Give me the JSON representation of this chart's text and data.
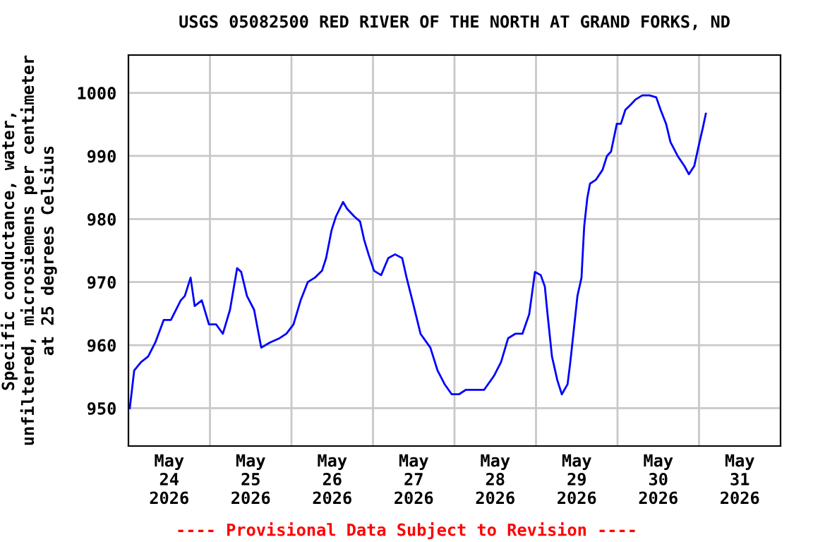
{
  "chart_data": {
    "type": "line",
    "title": "USGS 05082500 RED RIVER OF THE NORTH AT GRAND FORKS, ND",
    "ylabel": "Specific conductance, water,\nunfiltered, microsiemens per centimeter\nat 25 degrees Celsius",
    "annotations": [
      "---- Provisional Data Subject to Revision ----"
    ],
    "xlim": [
      "2026-05-24T00:00",
      "2026-06-01T00:00"
    ],
    "xticks": [
      {
        "value": "2026-05-24T12:00",
        "label": "May\n24\n2026"
      },
      {
        "value": "2026-05-25T12:00",
        "label": "May\n25\n2026"
      },
      {
        "value": "2026-05-26T12:00",
        "label": "May\n26\n2026"
      },
      {
        "value": "2026-05-27T12:00",
        "label": "May\n27\n2026"
      },
      {
        "value": "2026-05-28T12:00",
        "label": "May\n28\n2026"
      },
      {
        "value": "2026-05-29T12:00",
        "label": "May\n29\n2026"
      },
      {
        "value": "2026-05-30T12:00",
        "label": "May\n30\n2026"
      },
      {
        "value": "2026-05-31T12:00",
        "label": "May\n31\n2026"
      },
      {
        "value": "2026-05-25T00:00",
        "label": null
      },
      {
        "value": "2026-05-26T00:00",
        "label": null
      },
      {
        "value": "2026-05-27T00:00",
        "label": null
      },
      {
        "value": "2026-05-28T00:00",
        "label": null
      },
      {
        "value": "2026-05-29T00:00",
        "label": null
      },
      {
        "value": "2026-05-30T00:00",
        "label": null
      },
      {
        "value": "2026-05-31T00:00",
        "label": null
      }
    ],
    "ylim": [
      944,
      1006
    ],
    "yticks": [
      950,
      960,
      970,
      980,
      990,
      1000
    ],
    "grid": true,
    "legend": false,
    "line_style": "solid",
    "marker": "none",
    "series": [
      {
        "color": "#0000ff",
        "x": [
          "2026-05-24T00:24",
          "2026-05-24T01:42",
          "2026-05-24T03:42",
          "2026-05-24T05:48",
          "2026-05-24T07:54",
          "2026-05-24T10:24",
          "2026-05-24T12:30",
          "2026-05-24T15:24",
          "2026-05-24T16:36",
          "2026-05-24T18:18",
          "2026-05-24T19:30",
          "2026-05-24T21:36",
          "2026-05-24T23:42",
          "2026-05-25T01:48",
          "2026-05-25T03:48",
          "2026-05-25T05:54",
          "2026-05-25T08:00",
          "2026-05-25T09:12",
          "2026-05-25T10:54",
          "2026-05-25T13:00",
          "2026-05-25T15:06",
          "2026-05-25T17:36",
          "2026-05-25T20:30",
          "2026-05-25T22:30",
          "2026-05-26T00:36",
          "2026-05-26T02:42",
          "2026-05-26T04:48",
          "2026-05-26T06:54",
          "2026-05-26T09:00",
          "2026-05-26T10:12",
          "2026-05-26T11:48",
          "2026-05-26T13:06",
          "2026-05-26T15:12",
          "2026-05-26T16:24",
          "2026-05-26T18:30",
          "2026-05-26T20:12",
          "2026-05-26T21:24",
          "2026-05-26T22:42",
          "2026-05-27T00:18",
          "2026-05-27T02:24",
          "2026-05-27T04:30",
          "2026-05-27T06:30",
          "2026-05-27T08:36",
          "2026-05-27T09:54",
          "2026-05-27T12:00",
          "2026-05-27T14:00",
          "2026-05-27T16:54",
          "2026-05-27T19:00",
          "2026-05-27T21:06",
          "2026-05-27T23:12",
          "2026-05-28T01:18",
          "2026-05-28T03:18",
          "2026-05-28T06:12",
          "2026-05-28T08:42",
          "2026-05-28T11:36",
          "2026-05-28T13:42",
          "2026-05-28T15:48",
          "2026-05-28T17:54",
          "2026-05-28T20:00",
          "2026-05-28T22:00",
          "2026-05-28T23:42",
          "2026-05-29T01:24",
          "2026-05-29T02:36",
          "2026-05-29T03:24",
          "2026-05-29T04:42",
          "2026-05-29T06:18",
          "2026-05-29T07:36",
          "2026-05-29T09:18",
          "2026-05-29T10:06",
          "2026-05-29T11:18",
          "2026-05-29T12:12",
          "2026-05-29T13:24",
          "2026-05-29T13:48",
          "2026-05-29T14:12",
          "2026-05-29T15:06",
          "2026-05-29T15:54",
          "2026-05-29T17:36",
          "2026-05-29T19:36",
          "2026-05-29T20:54",
          "2026-05-29T22:06",
          "2026-05-29T23:48",
          "2026-05-30T01:00",
          "2026-05-30T02:18",
          "2026-05-30T04:00",
          "2026-05-30T05:12",
          "2026-05-30T07:18",
          "2026-05-30T09:24",
          "2026-05-30T11:24",
          "2026-05-30T12:42",
          "2026-05-30T14:18",
          "2026-05-30T15:36",
          "2026-05-30T17:42",
          "2026-05-30T19:42",
          "2026-05-30T21:00",
          "2026-05-30T22:36",
          "2026-05-30T23:54",
          "2026-05-31T01:06",
          "2026-05-31T02:00"
        ],
        "values": [
          950.0,
          956.0,
          957.3,
          958.2,
          960.4,
          964.0,
          964.0,
          967.1,
          967.8,
          970.7,
          966.2,
          967.1,
          963.3,
          963.3,
          961.8,
          965.6,
          972.2,
          971.6,
          967.8,
          965.6,
          959.6,
          960.4,
          961.1,
          961.8,
          963.3,
          967.1,
          970.0,
          970.7,
          971.8,
          973.8,
          978.2,
          980.4,
          982.7,
          981.6,
          980.4,
          979.6,
          976.7,
          974.4,
          971.8,
          971.1,
          973.8,
          974.4,
          973.8,
          970.7,
          966.2,
          961.8,
          959.6,
          956.0,
          953.8,
          952.2,
          952.2,
          952.9,
          952.9,
          952.9,
          955.1,
          957.3,
          961.1,
          961.8,
          961.8,
          964.9,
          971.6,
          971.1,
          969.3,
          964.9,
          958.2,
          954.4,
          952.2,
          953.8,
          957.3,
          963.3,
          967.8,
          970.7,
          974.9,
          978.9,
          983.3,
          985.6,
          986.2,
          987.8,
          990.0,
          990.7,
          995.1,
          995.1,
          997.3,
          998.2,
          998.9,
          999.6,
          999.6,
          999.3,
          997.3,
          995.1,
          992.2,
          990.0,
          988.4,
          987.1,
          988.4,
          991.6,
          994.4,
          996.7
        ]
      }
    ]
  }
}
